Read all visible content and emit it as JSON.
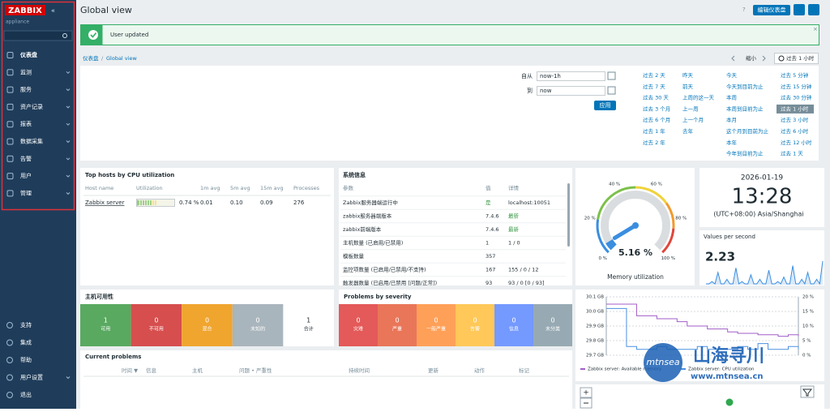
{
  "sidebar": {
    "logo": "ZABBIX",
    "subtitle": "appliance",
    "menu": [
      "仪表盘",
      "监测",
      "服务",
      "资产记录",
      "报表",
      "数据采集",
      "告警",
      "用户",
      "管理"
    ],
    "bottom_menu": [
      "支持",
      "集成",
      "帮助",
      "用户设置",
      "退出"
    ]
  },
  "header": {
    "title": "Global view",
    "help": "?",
    "edit_button": "编辑仪表盘"
  },
  "message": "User updated",
  "breadcrumb": [
    "仪表盘",
    "Global view"
  ],
  "time_nav": {
    "zoom_out": "缩小",
    "current": "过去 1 小时"
  },
  "filter": {
    "from_label": "自从",
    "from": "now-1h",
    "to_label": "到",
    "to": "now",
    "apply": "应用",
    "quick_ranges": [
      [
        "过去 2 天",
        "过去 7 天",
        "过去 30 天",
        "过去 3 个月",
        "过去 6 个月",
        "过去 1 年",
        "过去 2 年"
      ],
      [
        "昨天",
        "前天",
        "上周的这一天",
        "上一周",
        "上一个月",
        "去年"
      ],
      [
        "今天",
        "今天到目前为止",
        "本周",
        "本周到目前为止",
        "本月",
        "这个月到目前为止",
        "本年",
        "今年到目前为止"
      ],
      [
        "过去 5 分钟",
        "过去 15 分钟",
        "过去 30 分钟",
        "过去 1 小时",
        "过去 3 小时",
        "过去 6 小时",
        "过去 12 小时",
        "过去 1 天"
      ]
    ]
  },
  "top_hosts": {
    "title": "Top hosts by CPU utilization",
    "columns": [
      "Host name",
      "Utilization",
      "1m avg",
      "5m avg",
      "15m avg",
      "Processes"
    ],
    "rows": [
      {
        "host": "Zabbix server",
        "utilization": 0.74,
        "utilization_label": "0.74 %",
        "avg1": "0.01",
        "avg5": "0.10",
        "avg15": "0.09",
        "processes": "276"
      }
    ]
  },
  "system_info": {
    "title": "系统信息",
    "columns": [
      "参数",
      "值",
      "详情"
    ],
    "rows": [
      {
        "param": "Zabbix服务器端运行中",
        "value": "是",
        "detail": "localhost:10051",
        "value_color": "#3a9a48"
      },
      {
        "param": "zabbix服务器端版本",
        "value": "7.4.6",
        "detail": "最新",
        "detail_color": "#3a9a48"
      },
      {
        "param": "zabbix前端版本",
        "value": "7.4.6",
        "detail": "最新",
        "detail_color": "#3a9a48"
      },
      {
        "param": "主机数量 (已启用/已禁用)",
        "value": "1",
        "detail": "1 / 0"
      },
      {
        "param": "模板数量",
        "value": "357"
      },
      {
        "param": "监控项数量 (已启用/已禁用/不支持)",
        "value": "167",
        "detail": "155 / 0 / 12"
      },
      {
        "param": "触发器数量 (已启用/已禁用 [问题/正常])",
        "value": "93",
        "detail": "93 / 0 [0 / 93]"
      }
    ]
  },
  "gauge": {
    "title": "Memory utilization",
    "value": 5.16,
    "value_label": "5.16 %",
    "min": 0,
    "max": 100,
    "ticks": [
      {
        "value": 0,
        "label": "0 %"
      },
      {
        "value": 20,
        "label": "20 %"
      },
      {
        "value": 40,
        "label": "40 %"
      },
      {
        "value": 60,
        "label": "60 %"
      },
      {
        "value": 80,
        "label": "80 %"
      },
      {
        "value": 100,
        "label": "100 %"
      }
    ]
  },
  "clock": {
    "date": "2026-01-19",
    "time": "13:28",
    "timezone": "(UTC+08:00) Asia/Shanghai"
  },
  "values_per_second": {
    "title": "Values per second",
    "value": "2.23",
    "series": [
      2.2,
      2.2,
      2.25,
      2.2,
      2.45,
      2.2,
      2.2,
      2.3,
      2.2,
      2.2,
      2.55,
      2.2,
      2.25,
      2.2,
      2.2,
      2.4,
      2.2,
      2.2,
      2.3,
      2.2,
      2.2,
      2.5,
      2.2,
      2.2,
      2.25,
      2.2,
      2.35,
      2.2,
      2.2,
      2.6,
      2.2,
      2.2,
      2.3,
      2.2,
      2.45,
      2.2,
      2.2,
      2.3,
      2.2,
      2.7
    ]
  },
  "host_availability": {
    "title": "主机可用性",
    "cells": [
      {
        "count": "1",
        "label": "可用",
        "color": "#59a960"
      },
      {
        "count": "0",
        "label": "不可用",
        "color": "#d64e4e"
      },
      {
        "count": "0",
        "label": "混合",
        "color": "#f0a52f"
      },
      {
        "count": "0",
        "label": "未知的",
        "color": "#a9b5bc"
      },
      {
        "count": "1",
        "label": "合计",
        "color": "#ffffff"
      }
    ]
  },
  "problems_by_severity": {
    "title": "Problems by severity",
    "cells": [
      {
        "count": "0",
        "label": "灾难",
        "color": "#e45959"
      },
      {
        "count": "0",
        "label": "严重",
        "color": "#e97659"
      },
      {
        "count": "0",
        "label": "一般严重",
        "color": "#ffa059"
      },
      {
        "count": "0",
        "label": "告警",
        "color": "#ffc859"
      },
      {
        "count": "0",
        "label": "信息",
        "color": "#7499ff"
      },
      {
        "count": "0",
        "label": "未分类",
        "color": "#97aab3"
      }
    ]
  },
  "current_problems": {
    "title": "Current problems",
    "columns": [
      "时间 ▼",
      "信息",
      "主机",
      "问题 • 严重性",
      "持续时间",
      "更新",
      "动作",
      "标记"
    ]
  },
  "graph": {
    "type": "line",
    "ylim": [
      29.7,
      30.1
    ],
    "y2lim": [
      0,
      20
    ],
    "yticks": [
      {
        "value": 30.1,
        "label": "30.1 GB"
      },
      {
        "value": 30.0,
        "label": "30.0 GB"
      },
      {
        "value": 29.9,
        "label": "29.9 GB"
      },
      {
        "value": 29.8,
        "label": "29.8 GB"
      },
      {
        "value": 29.7,
        "label": "29.7 GB"
      }
    ],
    "y2ticks": [
      {
        "value": 20,
        "label": "20 %"
      },
      {
        "value": 15,
        "label": "15 %"
      },
      {
        "value": 10,
        "label": "10 %"
      },
      {
        "value": 5,
        "label": "5 %"
      },
      {
        "value": 0,
        "label": "0 %"
      }
    ],
    "series": [
      {
        "name": "Zabbix server: Available memory",
        "color": "#a05ec8",
        "values": [
          30.05,
          30.05,
          30.05,
          29.97,
          29.97,
          29.95,
          29.95,
          29.93,
          29.9,
          29.9,
          29.88,
          29.88,
          29.86,
          29.85,
          29.85,
          29.84,
          29.84,
          29.83,
          29.84,
          29.83
        ]
      },
      {
        "name": "Zabbix server: CPU utilization",
        "color": "#4a90e2",
        "axis": "y2",
        "values": [
          16,
          16,
          3,
          2,
          2,
          3,
          2,
          2,
          2,
          3,
          2,
          2,
          2,
          3,
          2,
          4,
          2,
          2,
          3,
          2
        ]
      }
    ]
  },
  "watermark": {
    "brand": "mtnsea",
    "name": "山海寻川",
    "url": "www.mtnsea.cn"
  }
}
